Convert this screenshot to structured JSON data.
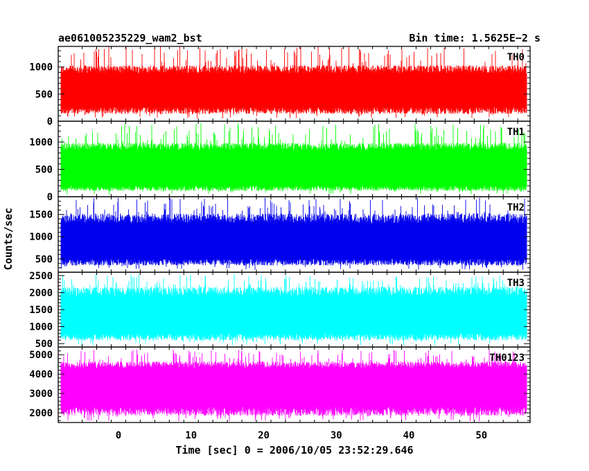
{
  "header": {
    "left": "ae061005235229_wam2_bst",
    "right": "Bin time: 1.5625E−2 s"
  },
  "chart_data": {
    "type": "line",
    "xlabel": "Time [sec] 0 = 2006/10/05 23:52:29.646",
    "ylabel": "Counts/sec",
    "xlim": [
      -8.3,
      56.7
    ],
    "x_data_range": [
      -7.9,
      56.2
    ],
    "xticks": [
      0,
      10,
      20,
      30,
      40,
      50
    ],
    "xtick_labels": [
      "0",
      "10",
      "20",
      "30",
      "40",
      "50"
    ],
    "panels": [
      {
        "label": "TH0",
        "color": "#ff0000",
        "ylim": [
          0,
          1380
        ],
        "yticks": [
          0,
          500,
          1000
        ],
        "ytick_labels": [
          "0",
          "500",
          "1000"
        ],
        "band": [
          260,
          880
        ],
        "peak": [
          1050,
          1400
        ],
        "trough": [
          50,
          200
        ]
      },
      {
        "label": "TH1",
        "color": "#00ff00",
        "ylim": [
          0,
          1380
        ],
        "yticks": [
          0,
          500,
          1000
        ],
        "ytick_labels": [
          "0",
          "500",
          "1000"
        ],
        "band": [
          200,
          850
        ],
        "peak": [
          1000,
          1350
        ],
        "trough": [
          40,
          190
        ]
      },
      {
        "label": "TH2",
        "color": "#0000ee",
        "ylim": [
          200,
          1900
        ],
        "yticks": [
          500,
          1000,
          1500
        ],
        "ytick_labels": [
          "500",
          "1000",
          "1500"
        ],
        "band": [
          500,
          1300
        ],
        "peak": [
          1550,
          1900
        ],
        "trough": [
          250,
          450
        ]
      },
      {
        "label": "TH3",
        "color": "#00ffff",
        "ylim": [
          400,
          2600
        ],
        "yticks": [
          500,
          1000,
          1500,
          2000,
          2500
        ],
        "ytick_labels": [
          "500",
          "1000",
          "1500",
          "2000",
          "2500"
        ],
        "band": [
          800,
          1900
        ],
        "peak": [
          2200,
          2550
        ],
        "trough": [
          450,
          700
        ]
      },
      {
        "label": "TH0123",
        "color": "#ff00ff",
        "ylim": [
          1500,
          5400
        ],
        "yticks": [
          2000,
          3000,
          4000,
          5000
        ],
        "ytick_labels": [
          "2000",
          "3000",
          "4000",
          "5000"
        ],
        "band": [
          2300,
          4300
        ],
        "peak": [
          4700,
          5300
        ],
        "trough": [
          1550,
          2000
        ]
      }
    ]
  }
}
